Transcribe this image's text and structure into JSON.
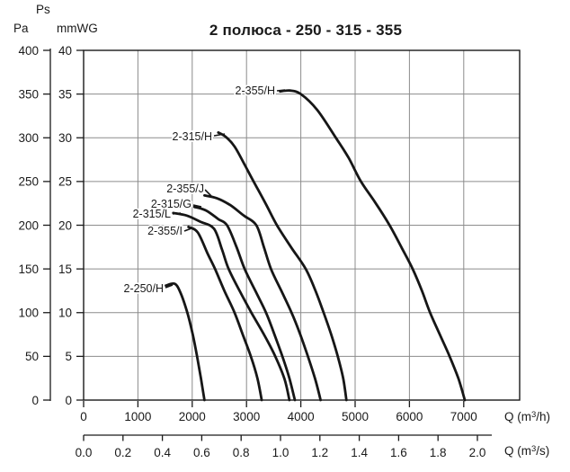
{
  "title": "2 полюса - 250 - 315 - 355",
  "pressure_axis": {
    "symbol": "Ps",
    "unit_primary": "Pa",
    "unit_secondary": "mmWG"
  },
  "flow_axis": {
    "m3h": {
      "pre": "Q (m",
      "sup": "3",
      "post": "/h)"
    },
    "m3s": {
      "pre": "Q (m",
      "sup": "3",
      "post": "/s)"
    }
  },
  "chart_data": {
    "type": "line",
    "title": "2 полюса - 250 - 315 - 355",
    "grid": true,
    "y_axis": {
      "label": "Ps",
      "range_pa": [
        0,
        400
      ],
      "units": [
        {
          "name": "Pa",
          "ticks": [
            400,
            350,
            300,
            250,
            200,
            150,
            100,
            50,
            0
          ]
        },
        {
          "name": "mmWG",
          "ticks": [
            40,
            35,
            30,
            25,
            20,
            15,
            10,
            5,
            0
          ]
        }
      ]
    },
    "x_axis": {
      "label": "Q (m3/h)",
      "range": [
        0,
        8030
      ],
      "tick_step": 1000,
      "ticks": [
        0,
        1000,
        2000,
        3000,
        4000,
        5000,
        6000,
        7000
      ]
    },
    "x_axis_secondary": {
      "label": "Q (m3/s)",
      "ticks": [
        "0.0",
        "0.2",
        "0.4",
        "0.6",
        "0.8",
        "1.0",
        "1.2",
        "1.4",
        "1.6",
        "1.8",
        "2.0"
      ]
    },
    "series": [
      {
        "name": "2-355/H",
        "points_q_pa": [
          [
            3620,
            353
          ],
          [
            3800,
            354
          ],
          [
            4000,
            350
          ],
          [
            4300,
            332
          ],
          [
            4645,
            300
          ],
          [
            4880,
            277
          ],
          [
            5107,
            250
          ],
          [
            5370,
            226
          ],
          [
            5634,
            200
          ],
          [
            5860,
            174
          ],
          [
            6060,
            150
          ],
          [
            6230,
            125
          ],
          [
            6380,
            100
          ],
          [
            6560,
            75
          ],
          [
            6740,
            50
          ],
          [
            6900,
            25
          ],
          [
            7020,
            0
          ]
        ]
      },
      {
        "name": "2-315/H",
        "points_q_pa": [
          [
            2480,
            306
          ],
          [
            2620,
            301
          ],
          [
            2780,
            290
          ],
          [
            2950,
            271
          ],
          [
            3130,
            250
          ],
          [
            3350,
            225
          ],
          [
            3560,
            200
          ],
          [
            3830,
            174
          ],
          [
            4090,
            150
          ],
          [
            4270,
            125
          ],
          [
            4420,
            100
          ],
          [
            4560,
            75
          ],
          [
            4680,
            50
          ],
          [
            4780,
            25
          ],
          [
            4840,
            0
          ]
        ]
      },
      {
        "name": "2-355/J",
        "points_q_pa": [
          [
            2225,
            234
          ],
          [
            2450,
            231
          ],
          [
            2700,
            223
          ],
          [
            2950,
            211
          ],
          [
            3180,
            200
          ],
          [
            3320,
            175
          ],
          [
            3450,
            150
          ],
          [
            3640,
            125
          ],
          [
            3830,
            100
          ],
          [
            3990,
            75
          ],
          [
            4130,
            50
          ],
          [
            4260,
            25
          ],
          [
            4365,
            0
          ]
        ]
      },
      {
        "name": "2-315/G",
        "points_q_pa": [
          [
            2040,
            221
          ],
          [
            2250,
            217
          ],
          [
            2480,
            207
          ],
          [
            2640,
            200
          ],
          [
            2810,
            176
          ],
          [
            2965,
            150
          ],
          [
            3170,
            124
          ],
          [
            3360,
            100
          ],
          [
            3520,
            74
          ],
          [
            3660,
            50
          ],
          [
            3790,
            25
          ],
          [
            3890,
            0
          ]
        ]
      },
      {
        "name": "2-315/L",
        "points_q_pa": [
          [
            1650,
            214
          ],
          [
            1900,
            211
          ],
          [
            2150,
            204
          ],
          [
            2400,
            196
          ],
          [
            2550,
            172
          ],
          [
            2670,
            150
          ],
          [
            2880,
            124
          ],
          [
            3090,
            100
          ],
          [
            3330,
            74
          ],
          [
            3530,
            50
          ],
          [
            3700,
            24
          ],
          [
            3790,
            0
          ]
        ]
      },
      {
        "name": "2-355/I",
        "points_q_pa": [
          [
            1930,
            198
          ],
          [
            2100,
            192
          ],
          [
            2280,
            168
          ],
          [
            2420,
            150
          ],
          [
            2600,
            124
          ],
          [
            2780,
            100
          ],
          [
            2930,
            75
          ],
          [
            3080,
            50
          ],
          [
            3200,
            25
          ],
          [
            3280,
            0
          ]
        ]
      },
      {
        "name": "2-250/H",
        "points_q_pa": [
          [
            1515,
            131
          ],
          [
            1680,
            133
          ],
          [
            1790,
            122
          ],
          [
            1910,
            100
          ],
          [
            2010,
            75
          ],
          [
            2090,
            50
          ],
          [
            2160,
            25
          ],
          [
            2225,
            0
          ]
        ]
      }
    ]
  }
}
